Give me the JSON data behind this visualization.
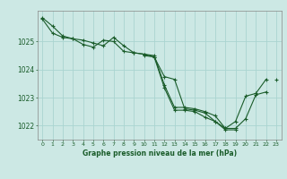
{
  "title": "Graphe pression niveau de la mer (hPa)",
  "bg_color": "#cce8e4",
  "grid_color": "#aad4d0",
  "line_color": "#1a5c2a",
  "marker_color": "#1a5c2a",
  "xlim": [
    -0.5,
    23.5
  ],
  "ylim": [
    1021.5,
    1026.1
  ],
  "yticks": [
    1022,
    1023,
    1024,
    1025
  ],
  "xticks": [
    0,
    1,
    2,
    3,
    4,
    5,
    6,
    7,
    8,
    9,
    10,
    11,
    12,
    13,
    14,
    15,
    16,
    17,
    18,
    19,
    20,
    21,
    22,
    23
  ],
  "series": [
    [
      1025.85,
      1025.55,
      1025.2,
      1025.1,
      1025.05,
      1024.95,
      1024.85,
      1025.15,
      1024.85,
      1024.6,
      1024.55,
      1024.5,
      1023.45,
      1022.65,
      1022.65,
      1022.6,
      1022.5,
      1022.35,
      1021.9,
      1021.9,
      1022.25,
      1023.1,
      1023.2,
      null
    ],
    [
      1025.8,
      1025.3,
      1025.15,
      1025.1,
      1024.9,
      1024.8,
      1025.05,
      1025.0,
      1024.65,
      1024.6,
      1024.55,
      1024.45,
      1023.35,
      1022.55,
      1022.55,
      1022.5,
      1022.3,
      1022.15,
      1021.85,
      1021.85,
      null,
      null,
      null,
      null
    ],
    [
      null,
      null,
      null,
      null,
      null,
      null,
      null,
      null,
      null,
      null,
      1024.5,
      1024.45,
      1023.75,
      1023.65,
      1022.6,
      1022.55,
      1022.45,
      1022.15,
      1021.9,
      1022.15,
      1023.05,
      1023.15,
      1023.65,
      null
    ],
    [
      null,
      null,
      null,
      null,
      null,
      null,
      null,
      null,
      null,
      null,
      null,
      null,
      null,
      null,
      null,
      null,
      null,
      null,
      null,
      null,
      null,
      null,
      null,
      1023.65
    ]
  ]
}
